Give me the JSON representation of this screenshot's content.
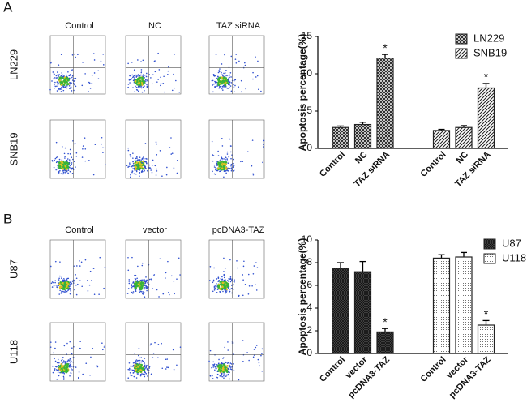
{
  "panels": [
    {
      "label": "A",
      "columns": [
        "Control",
        "NC",
        "TAZ siRNA"
      ],
      "rows": [
        "LN229",
        "SNB19"
      ]
    },
    {
      "label": "B",
      "columns": [
        "Control",
        "vector",
        "pcDNA3-TAZ"
      ],
      "rows": [
        "U87",
        "U118"
      ]
    }
  ],
  "chart_data": [
    {
      "type": "bar",
      "y_label": "Apoptosis percentage(%)",
      "categories": [
        "Control",
        "NC",
        "TAZ siRNA",
        "Control",
        "NC",
        "TAZ siRNA"
      ],
      "series": [
        {
          "name": "LN229",
          "color": "#222222",
          "pattern": "crosshatch",
          "values": [
            2.8,
            3.2,
            12.1,
            null,
            null,
            null
          ],
          "errors": [
            0.2,
            0.3,
            0.5,
            null,
            null,
            null
          ],
          "significance": [
            null,
            null,
            "*",
            null,
            null,
            null
          ]
        },
        {
          "name": "SNB19",
          "color": "#222222",
          "pattern": "diagonal",
          "values": [
            null,
            null,
            null,
            2.4,
            2.8,
            8.1
          ],
          "errors": [
            null,
            null,
            null,
            0.15,
            0.25,
            0.6
          ],
          "significance": [
            null,
            null,
            null,
            null,
            null,
            "*"
          ]
        }
      ],
      "ylim": [
        0,
        15
      ],
      "yticks": [
        0,
        5,
        10,
        15
      ],
      "legend": "top-right"
    },
    {
      "type": "bar",
      "y_label": "Apoptosis percentage(%)",
      "categories": [
        "Control",
        "vector",
        "pcDNA3-TAZ",
        "Control",
        "vector",
        "pcDNA3-TAZ"
      ],
      "series": [
        {
          "name": "U87",
          "color": "#222222",
          "pattern": "dense",
          "values": [
            7.5,
            7.2,
            1.9,
            null,
            null,
            null
          ],
          "errors": [
            0.5,
            0.9,
            0.3,
            null,
            null,
            null
          ],
          "significance": [
            null,
            null,
            "*",
            null,
            null,
            null
          ]
        },
        {
          "name": "U118",
          "color": "#222222",
          "pattern": "dots",
          "values": [
            null,
            null,
            null,
            8.4,
            8.5,
            2.5
          ],
          "errors": [
            null,
            null,
            null,
            0.3,
            0.4,
            0.4
          ],
          "significance": [
            null,
            null,
            null,
            null,
            null,
            "*"
          ]
        }
      ],
      "ylim": [
        0,
        10
      ],
      "yticks": [
        0,
        2,
        4,
        6,
        8,
        10
      ],
      "legend": "top-right"
    }
  ]
}
